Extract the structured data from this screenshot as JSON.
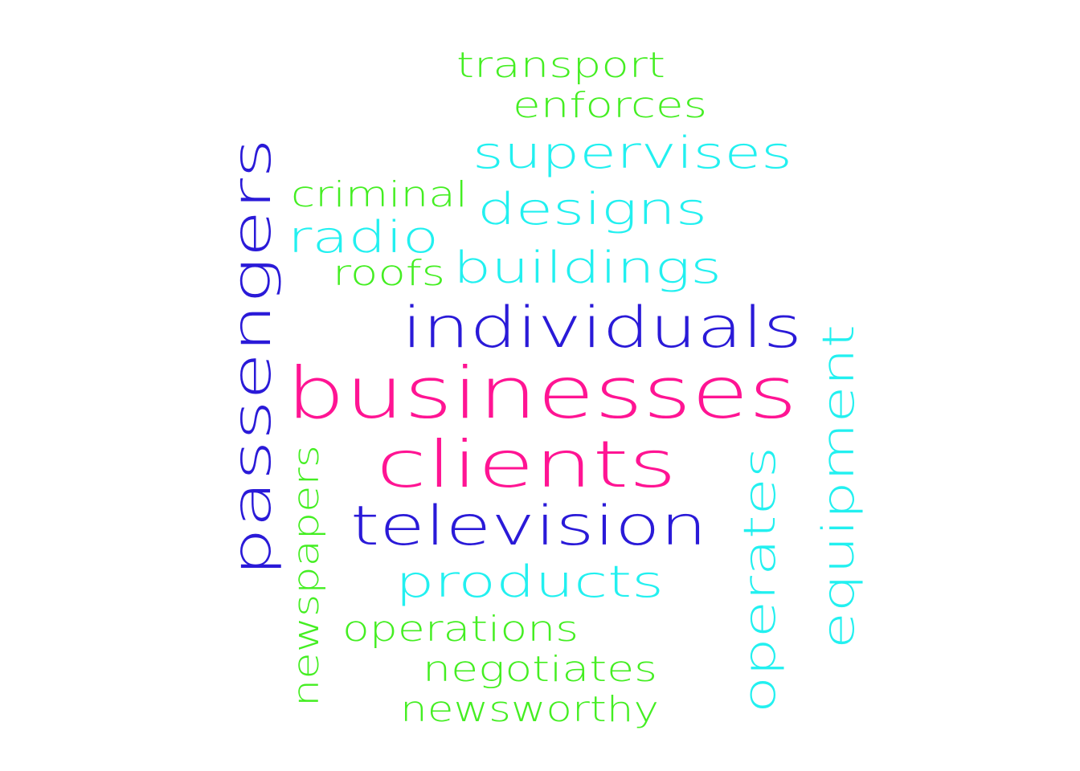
{
  "words": [
    {
      "text": "businesses",
      "weight": 10,
      "color": "#ff1493"
    },
    {
      "text": "clients",
      "weight": 9,
      "color": "#ff1493"
    },
    {
      "text": "individuals",
      "weight": 8,
      "color": "#2a1ad8"
    },
    {
      "text": "television",
      "weight": 8,
      "color": "#2a1ad8"
    },
    {
      "text": "passengers",
      "weight": 8,
      "color": "#2a1ad8",
      "orientation": "vertical"
    },
    {
      "text": "supervises",
      "weight": 6,
      "color": "#22f0f0"
    },
    {
      "text": "designs",
      "weight": 6,
      "color": "#22f0f0"
    },
    {
      "text": "radio",
      "weight": 6,
      "color": "#22f0f0"
    },
    {
      "text": "buildings",
      "weight": 6,
      "color": "#22f0f0"
    },
    {
      "text": "products",
      "weight": 6,
      "color": "#22f0f0"
    },
    {
      "text": "operates",
      "weight": 6,
      "color": "#22f0f0",
      "orientation": "vertical"
    },
    {
      "text": "equipment",
      "weight": 6,
      "color": "#22f0f0",
      "orientation": "vertical"
    },
    {
      "text": "transport",
      "weight": 4,
      "color": "#44ee22"
    },
    {
      "text": "enforces",
      "weight": 4,
      "color": "#44ee22"
    },
    {
      "text": "criminal",
      "weight": 4,
      "color": "#44ee22"
    },
    {
      "text": "roofs",
      "weight": 4,
      "color": "#44ee22"
    },
    {
      "text": "operations",
      "weight": 4,
      "color": "#44ee22"
    },
    {
      "text": "negotiates",
      "weight": 4,
      "color": "#44ee22"
    },
    {
      "text": "newsworthy",
      "weight": 4,
      "color": "#44ee22"
    },
    {
      "text": "newspapers",
      "weight": 4,
      "color": "#44ee22",
      "orientation": "vertical"
    }
  ]
}
